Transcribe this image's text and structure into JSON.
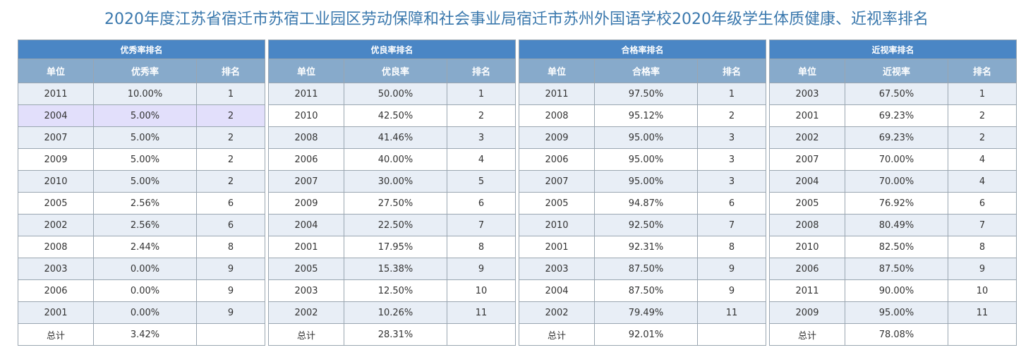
{
  "title": "2020年度江苏省宿迁市苏宿工业园区劳动保障和社会事业局宿迁市苏州外国语学校2020年级学生体质健康、近视率排名",
  "tables": [
    {
      "caption": "优秀率排名",
      "headers": [
        "单位",
        "优秀率",
        "排名"
      ],
      "rows": [
        [
          "2011",
          "10.00%",
          "1"
        ],
        [
          "2004",
          "5.00%",
          "2"
        ],
        [
          "2007",
          "5.00%",
          "2"
        ],
        [
          "2009",
          "5.00%",
          "2"
        ],
        [
          "2010",
          "5.00%",
          "2"
        ],
        [
          "2005",
          "2.56%",
          "6"
        ],
        [
          "2002",
          "2.56%",
          "6"
        ],
        [
          "2008",
          "2.44%",
          "8"
        ],
        [
          "2003",
          "0.00%",
          "9"
        ],
        [
          "2006",
          "0.00%",
          "9"
        ],
        [
          "2001",
          "0.00%",
          "9"
        ]
      ],
      "total": [
        "总计",
        "3.42%",
        ""
      ],
      "highlight_row": 1
    },
    {
      "caption": "优良率排名",
      "headers": [
        "单位",
        "优良率",
        "排名"
      ],
      "rows": [
        [
          "2011",
          "50.00%",
          "1"
        ],
        [
          "2010",
          "42.50%",
          "2"
        ],
        [
          "2008",
          "41.46%",
          "3"
        ],
        [
          "2006",
          "40.00%",
          "4"
        ],
        [
          "2007",
          "30.00%",
          "5"
        ],
        [
          "2009",
          "27.50%",
          "6"
        ],
        [
          "2004",
          "22.50%",
          "7"
        ],
        [
          "2001",
          "17.95%",
          "8"
        ],
        [
          "2005",
          "15.38%",
          "9"
        ],
        [
          "2003",
          "12.50%",
          "10"
        ],
        [
          "2002",
          "10.26%",
          "11"
        ]
      ],
      "total": [
        "总计",
        "28.31%",
        ""
      ],
      "highlight_row": -1
    },
    {
      "caption": "合格率排名",
      "headers": [
        "单位",
        "合格率",
        "排名"
      ],
      "rows": [
        [
          "2011",
          "97.50%",
          "1"
        ],
        [
          "2008",
          "95.12%",
          "2"
        ],
        [
          "2009",
          "95.00%",
          "3"
        ],
        [
          "2006",
          "95.00%",
          "3"
        ],
        [
          "2007",
          "95.00%",
          "3"
        ],
        [
          "2005",
          "94.87%",
          "6"
        ],
        [
          "2010",
          "92.50%",
          "7"
        ],
        [
          "2001",
          "92.31%",
          "8"
        ],
        [
          "2003",
          "87.50%",
          "9"
        ],
        [
          "2004",
          "87.50%",
          "9"
        ],
        [
          "2002",
          "79.49%",
          "11"
        ]
      ],
      "total": [
        "总计",
        "92.01%",
        ""
      ],
      "highlight_row": -1
    },
    {
      "caption": "近视率排名",
      "headers": [
        "单位",
        "近视率",
        "排名"
      ],
      "rows": [
        [
          "2003",
          "67.50%",
          "1"
        ],
        [
          "2001",
          "69.23%",
          "2"
        ],
        [
          "2002",
          "69.23%",
          "2"
        ],
        [
          "2007",
          "70.00%",
          "4"
        ],
        [
          "2004",
          "70.00%",
          "4"
        ],
        [
          "2005",
          "76.92%",
          "6"
        ],
        [
          "2008",
          "80.49%",
          "7"
        ],
        [
          "2010",
          "82.50%",
          "8"
        ],
        [
          "2006",
          "87.50%",
          "9"
        ],
        [
          "2011",
          "90.00%",
          "10"
        ],
        [
          "2009",
          "95.00%",
          "11"
        ]
      ],
      "total": [
        "总计",
        "78.08%",
        ""
      ],
      "highlight_row": -1
    }
  ],
  "colors": {
    "title": "#3a78ad",
    "caption_bg": "#4a86c5",
    "header_bg": "#87aacb",
    "row_alt_bg": "#e8eef6",
    "row_highlight_bg": "#e2dffb",
    "border": "#9aa6b1"
  }
}
